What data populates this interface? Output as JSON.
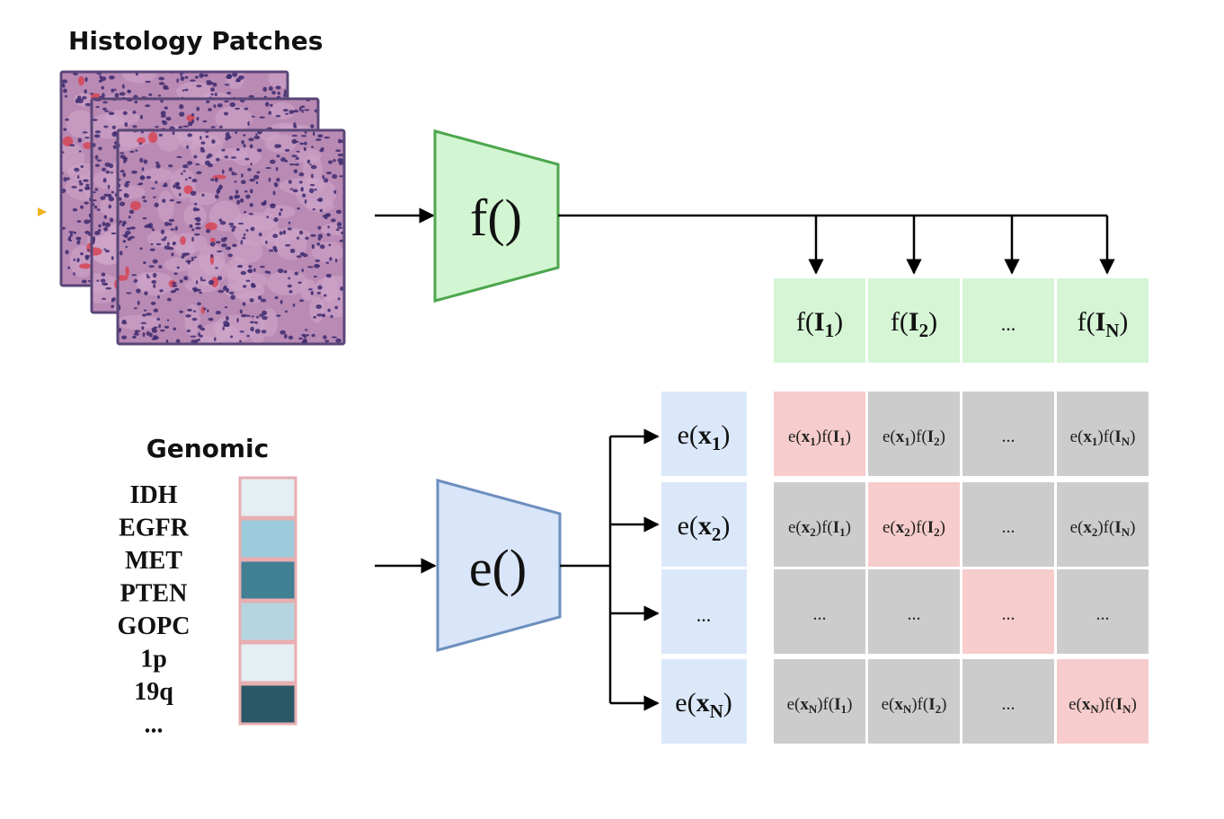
{
  "histology": {
    "title": "Histology Patches",
    "tissue_colors": {
      "background": "#b98ab4",
      "light": "#cfa6cb",
      "nuclei": "#3d2a6e",
      "blood": "#d8404f",
      "border": "#5a4677"
    }
  },
  "genomic": {
    "title": "Genomic",
    "genes": [
      "IDH",
      "EGFR",
      "MET",
      "PTEN",
      "GOPC",
      "1p",
      "19q",
      "..."
    ],
    "swatch_colors": [
      "#e4eef3",
      "#9ccbdb",
      "#417f93",
      "#b5d6e0",
      "#e4eef3",
      "#2b5866"
    ],
    "swatch_border": "#e8aeb0"
  },
  "encoders": {
    "image_encoder": {
      "label": "f()",
      "fill": "#d2f5d2",
      "stroke": "#4ca64c"
    },
    "genomic_encoder": {
      "label": "e()",
      "fill": "#d9e5f8",
      "stroke": "#6c8ebf"
    }
  },
  "image_embeddings": [
    {
      "base": "f(",
      "bold": "I",
      "sub": "1",
      "close": ")"
    },
    {
      "base": "f(",
      "bold": "I",
      "sub": "2",
      "close": ")"
    },
    {
      "plain": "..."
    },
    {
      "base": "f(",
      "bold": "I",
      "sub": "N",
      "close": ")"
    }
  ],
  "genomic_embeddings": [
    {
      "base": "e(",
      "bold": "x",
      "sub": "1",
      "close": ")"
    },
    {
      "base": "e(",
      "bold": "x",
      "sub": "2",
      "close": ")"
    },
    {
      "plain": "..."
    },
    {
      "base": "e(",
      "bold": "x",
      "sub": "N",
      "close": ")"
    }
  ],
  "similarity_matrix": {
    "row_ids": [
      "1",
      "2",
      null,
      "N"
    ],
    "col_ids": [
      "1",
      "2",
      null,
      "N"
    ],
    "ellipsis": "...",
    "colors": {
      "diagonal": "#f7cccc",
      "off_diagonal": "#cccccc",
      "image_cell": "#d5f5d5",
      "genomic_cell": "#dbe8fa"
    }
  },
  "marker_color": "#f2b21c"
}
